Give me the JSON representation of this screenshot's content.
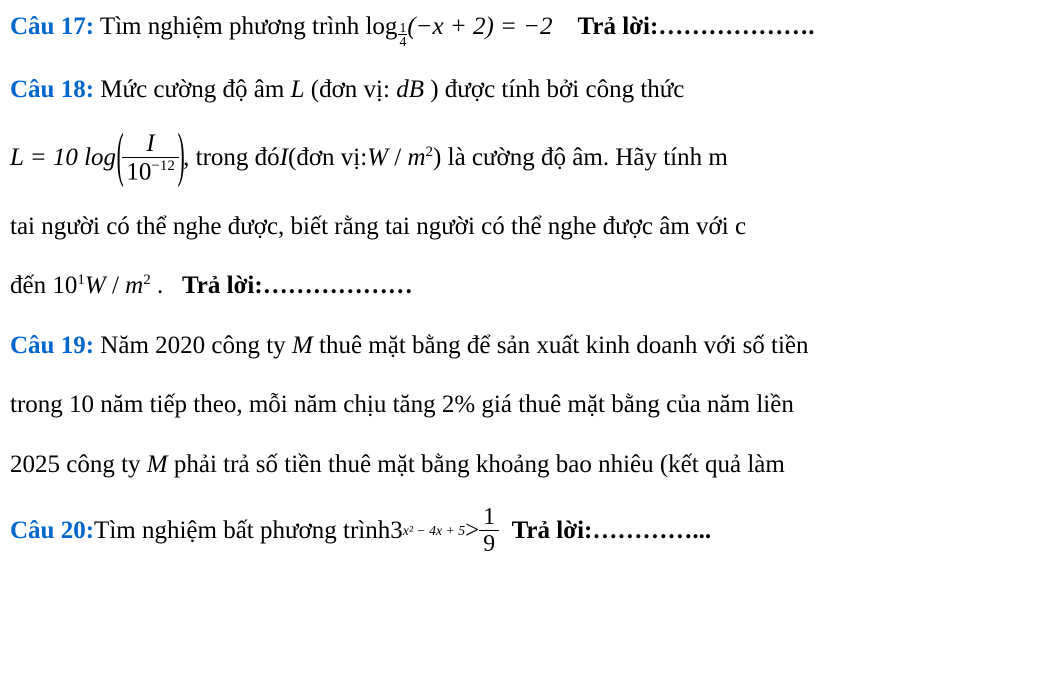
{
  "q17": {
    "label": "Câu 17:",
    "text_a": " Tìm nghiệm phương trình ",
    "log_word": "log",
    "sub_frac_num": "1",
    "sub_frac_den": "4",
    "arg": "(−x + 2) = −2",
    "gap": "    ",
    "answer_label": "Trả lời:",
    "dots": "………………."
  },
  "q18": {
    "label": "Câu 18:",
    "line1_a": " Mức cường độ âm ",
    "L": "L",
    "line1_b": " (đơn vị: ",
    "dB": "dB",
    "line1_c": " ) được tính bởi công thức",
    "formula_lhs": "L = 10 log",
    "frac_num": "I",
    "frac_den_base": "10",
    "frac_den_exp": "−12",
    "line2_a": ", trong đó ",
    "I": "I",
    "line2_b": " (đơn vị: ",
    "Wm2_W": "W",
    "Wm2_slash": " / ",
    "Wm2_m": "m",
    "Wm2_exp": "2",
    "line2_c": " ) là cường độ âm. Hãy tính m",
    "line3": "tai người có thể nghe được, biết rằng tai người có thể nghe được âm với c",
    "line4_a": "đến ",
    "ten": "10",
    "ten_exp": "1",
    "line4_b": " .   ",
    "answer_label": "Trả lời:",
    "dots": "………………"
  },
  "q19": {
    "label": "Câu 19:",
    "line1_a": " Năm 2020 công ty ",
    "M": "M",
    "line1_b": " thuê mặt bằng để sản xuất kinh doanh với số tiền",
    "line2": "trong 10 năm tiếp theo, mỗi năm chịu tăng 2% giá thuê mặt bằng của năm liền",
    "line3_a": "2025 công ty ",
    "line3_b": " phải trả số tiền thuê mặt bằng khoảng bao nhiêu (kết quả làm"
  },
  "q20": {
    "label": "Câu 20:",
    "text_a": " Tìm nghiệm bất phương trình ",
    "base": "3",
    "exp": "x² − 4x + 5",
    "gt": " > ",
    "frac_num": "1",
    "frac_den": "9",
    "gap": "  ",
    "answer_label": "Trả lời:",
    "dots": "…………..."
  }
}
